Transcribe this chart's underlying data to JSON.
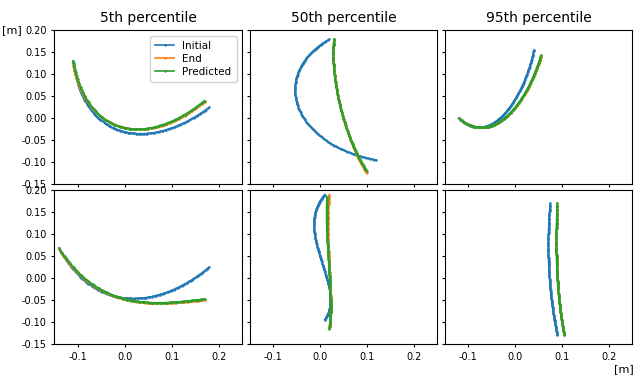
{
  "titles": [
    "5th percentile",
    "50th percentile",
    "95th percentile"
  ],
  "ylabel": "[m]",
  "xlabel": "[m]",
  "colors": {
    "initial": "#1f77b4",
    "end": "#ff7f0e",
    "predicted": "#2ca02c"
  },
  "legend_labels": [
    "Initial",
    "End",
    "Predicted"
  ],
  "linewidth": 1.2,
  "markersize": 1.5
}
